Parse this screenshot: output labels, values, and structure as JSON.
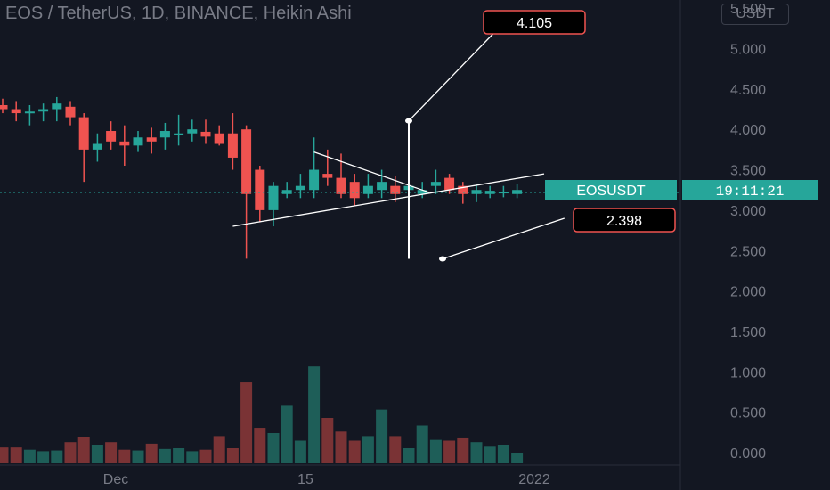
{
  "header": {
    "title": "EOS / TetherUS, 1D, BINANCE, Heikin Ashi",
    "currency": "USDT"
  },
  "price_tag": {
    "symbol": "EOSUSDT",
    "countdown": "19:11:21"
  },
  "annotations": {
    "upper_target": "4.105",
    "lower_target": "2.398"
  },
  "colors": {
    "background": "#131722",
    "bull": "#26a69a",
    "bear": "#ef5350",
    "bull_volume": "#1e5e58",
    "bear_volume": "#7a3335",
    "axis_text": "#787b86",
    "grid_line": "#2a2e39"
  },
  "chart_data": {
    "type": "candlestick",
    "title": "EOS / TetherUS, 1D, BINANCE, Heikin Ashi",
    "y_axis": {
      "ticks": [
        "0.000",
        "0.500",
        "1.000",
        "1.500",
        "2.000",
        "2.500",
        "3.000",
        "3.500",
        "4.000",
        "4.500",
        "5.000",
        "5.500"
      ],
      "range": [
        0,
        5.5
      ]
    },
    "x_axis": {
      "ticks": [
        "Dec",
        "15",
        "2022"
      ]
    },
    "last_price": 3.22,
    "candles": [
      {
        "o": 4.3,
        "h": 4.38,
        "l": 4.2,
        "c": 4.25,
        "v": 0.21
      },
      {
        "o": 4.25,
        "h": 4.35,
        "l": 4.1,
        "c": 4.2,
        "v": 0.21
      },
      {
        "o": 4.2,
        "h": 4.3,
        "l": 4.05,
        "c": 4.22,
        "v": 0.18
      },
      {
        "o": 4.22,
        "h": 4.32,
        "l": 4.1,
        "c": 4.25,
        "v": 0.16
      },
      {
        "o": 4.25,
        "h": 4.4,
        "l": 4.1,
        "c": 4.32,
        "v": 0.17
      },
      {
        "o": 4.28,
        "h": 4.35,
        "l": 4.05,
        "c": 4.15,
        "v": 0.28
      },
      {
        "o": 4.15,
        "h": 4.2,
        "l": 3.35,
        "c": 3.75,
        "v": 0.35
      },
      {
        "o": 3.75,
        "h": 3.95,
        "l": 3.6,
        "c": 3.82,
        "v": 0.24
      },
      {
        "o": 3.98,
        "h": 4.1,
        "l": 3.75,
        "c": 3.85,
        "v": 0.28
      },
      {
        "o": 3.85,
        "h": 4.05,
        "l": 3.55,
        "c": 3.8,
        "v": 0.18
      },
      {
        "o": 3.8,
        "h": 3.98,
        "l": 3.72,
        "c": 3.9,
        "v": 0.17
      },
      {
        "o": 3.9,
        "h": 4.02,
        "l": 3.7,
        "c": 3.85,
        "v": 0.26
      },
      {
        "o": 3.9,
        "h": 4.08,
        "l": 3.75,
        "c": 3.98,
        "v": 0.19
      },
      {
        "o": 3.95,
        "h": 4.18,
        "l": 3.8,
        "c": 3.95,
        "v": 0.2
      },
      {
        "o": 3.95,
        "h": 4.12,
        "l": 3.85,
        "c": 4.0,
        "v": 0.16
      },
      {
        "o": 3.97,
        "h": 4.12,
        "l": 3.82,
        "c": 3.91,
        "v": 0.18
      },
      {
        "o": 3.95,
        "h": 4.05,
        "l": 3.8,
        "c": 3.82,
        "v": 0.36
      },
      {
        "o": 3.95,
        "h": 4.2,
        "l": 3.5,
        "c": 3.65,
        "v": 0.2
      },
      {
        "o": 4.0,
        "h": 4.05,
        "l": 2.4,
        "c": 3.2,
        "v": 1.07
      },
      {
        "o": 3.5,
        "h": 3.55,
        "l": 2.85,
        "c": 3.0,
        "v": 0.47
      },
      {
        "o": 3.0,
        "h": 3.35,
        "l": 2.8,
        "c": 3.3,
        "v": 0.4
      },
      {
        "o": 3.2,
        "h": 3.35,
        "l": 3.15,
        "c": 3.25,
        "v": 0.76
      },
      {
        "o": 3.25,
        "h": 3.45,
        "l": 3.15,
        "c": 3.3,
        "v": 0.3
      },
      {
        "o": 3.25,
        "h": 3.9,
        "l": 3.15,
        "c": 3.5,
        "v": 1.28
      },
      {
        "o": 3.45,
        "h": 3.75,
        "l": 3.3,
        "c": 3.4,
        "v": 0.6
      },
      {
        "o": 3.4,
        "h": 3.7,
        "l": 3.15,
        "c": 3.2,
        "v": 0.42
      },
      {
        "o": 3.35,
        "h": 3.45,
        "l": 3.05,
        "c": 3.15,
        "v": 0.3
      },
      {
        "o": 3.2,
        "h": 3.45,
        "l": 3.15,
        "c": 3.3,
        "v": 0.36
      },
      {
        "o": 3.25,
        "h": 3.5,
        "l": 3.15,
        "c": 3.35,
        "v": 0.71
      },
      {
        "o": 3.3,
        "h": 3.42,
        "l": 3.1,
        "c": 3.2,
        "v": 0.36
      },
      {
        "o": 3.25,
        "h": 3.45,
        "l": 3.1,
        "c": 3.3,
        "v": 0.2
      },
      {
        "o": 3.2,
        "h": 3.35,
        "l": 3.15,
        "c": 3.25,
        "v": 0.5
      },
      {
        "o": 3.3,
        "h": 3.5,
        "l": 3.2,
        "c": 3.35,
        "v": 0.31
      },
      {
        "o": 3.4,
        "h": 3.45,
        "l": 3.2,
        "c": 3.25,
        "v": 0.3
      },
      {
        "o": 3.3,
        "h": 3.35,
        "l": 3.08,
        "c": 3.2,
        "v": 0.33
      },
      {
        "o": 3.2,
        "h": 3.32,
        "l": 3.1,
        "c": 3.25,
        "v": 0.28
      },
      {
        "o": 3.2,
        "h": 3.3,
        "l": 3.15,
        "c": 3.24,
        "v": 0.22
      },
      {
        "o": 3.22,
        "h": 3.3,
        "l": 3.16,
        "c": 3.23,
        "v": 0.24
      },
      {
        "o": 3.2,
        "h": 3.32,
        "l": 3.15,
        "c": 3.25,
        "v": 0.13
      }
    ],
    "drawings": {
      "triangle_upper": {
        "from": {
          "i": 23,
          "p": 3.72
        },
        "to": {
          "i": 31.5,
          "p": 3.22
        }
      },
      "triangle_lower": {
        "from": {
          "i": 17,
          "p": 2.8
        },
        "to": {
          "i": 31.5,
          "p": 3.22
        },
        "extend_to": {
          "i": 40,
          "p": 3.45
        }
      },
      "vertical_projection": {
        "i": 30,
        "top": 4.105,
        "bottom": 2.398
      },
      "upper_callout_line": {
        "from": {
          "i": 30,
          "p": 4.105
        },
        "to": {
          "i": 37.2,
          "p": 5.35
        }
      },
      "lower_callout_line": {
        "from": {
          "i": 32.5,
          "p": 2.398
        },
        "to": {
          "i": 41.5,
          "p": 2.9
        }
      }
    }
  }
}
